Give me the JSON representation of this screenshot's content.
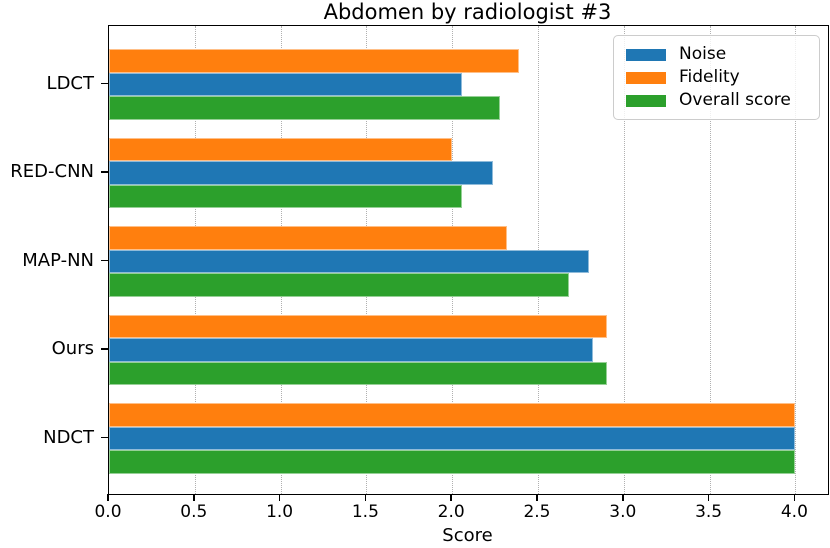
{
  "chart_data": {
    "type": "bar",
    "orientation": "horizontal",
    "title": "Abdomen by radiologist #3",
    "xlabel": "Score",
    "ylabel": "",
    "categories": [
      "LDCT",
      "RED-CNN",
      "MAP-NN",
      "Ours",
      "NDCT"
    ],
    "series": [
      {
        "name": "Noise",
        "color": "#1f77b4",
        "values": [
          2.06,
          2.24,
          2.8,
          2.82,
          4.0
        ]
      },
      {
        "name": "Fidelity",
        "color": "#ff7f0e",
        "values": [
          2.39,
          2.0,
          2.32,
          2.9,
          4.0
        ]
      },
      {
        "name": "Overall score",
        "color": "#2ca02c",
        "values": [
          2.28,
          2.06,
          2.68,
          2.9,
          4.0
        ]
      }
    ],
    "bar_order_top_to_bottom": [
      "Fidelity",
      "Noise",
      "Overall score"
    ],
    "x_ticks": [
      "0.0",
      "0.5",
      "1.0",
      "1.5",
      "2.0",
      "2.5",
      "3.0",
      "3.5",
      "4.0"
    ],
    "x_tick_values": [
      0,
      0.5,
      1,
      1.5,
      2,
      2.5,
      3,
      3.5,
      4
    ],
    "xlim": [
      0,
      4.19
    ],
    "grid": "vertical-dotted",
    "legend_position": "upper-right",
    "frame_color": "#000000",
    "grid_color": "#b0b0b0",
    "background_color": "#ffffff"
  }
}
